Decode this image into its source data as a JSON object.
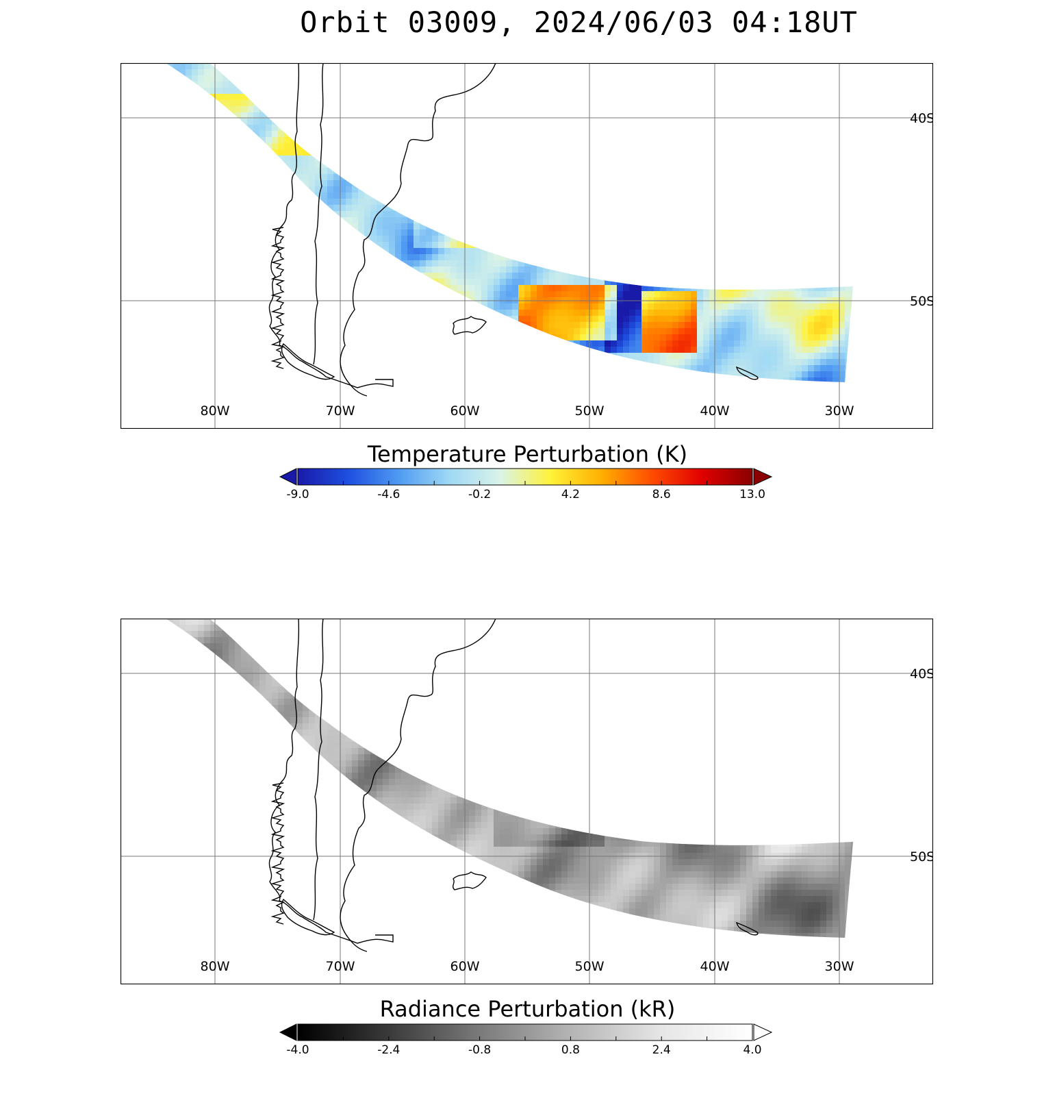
{
  "title": "Orbit 03009, 2024/06/03 04:18UT",
  "lon_labels": [
    "80W",
    "70W",
    "60W",
    "50W",
    "40W",
    "30W"
  ],
  "lat_labels": [
    "40S",
    "50S"
  ],
  "panels": [
    {
      "colorbar_title": "Temperature Perturbation (K)",
      "colorbar_ticks": [
        "-9.0",
        "-4.6",
        "-0.2",
        "4.2",
        "8.6",
        "13.0"
      ],
      "colormap": [
        "#1a1aa8",
        "#1e4fe0",
        "#4f9bf2",
        "#9fd8f5",
        "#d9f3e8",
        "#fff23a",
        "#ffb000",
        "#ff4d00",
        "#e00000",
        "#8a0000"
      ],
      "low_arrow_color": "#1a1aa8",
      "high_arrow_color": "#8a0000"
    },
    {
      "colorbar_title": "Radiance Perturbation (kR)",
      "colorbar_ticks": [
        "-4.0",
        "-2.4",
        "-0.8",
        "0.8",
        "2.4",
        "4.0"
      ],
      "colormap": [
        "#000000",
        "#3a3a3a",
        "#7a7a7a",
        "#b4b4b4",
        "#e6e6e6",
        "#ffffff"
      ],
      "low_arrow_color": "#000000",
      "high_arrow_color": "#ffffff"
    }
  ],
  "colors": {
    "frame": "#000000",
    "grid": "#777777",
    "coast": "#000000"
  }
}
